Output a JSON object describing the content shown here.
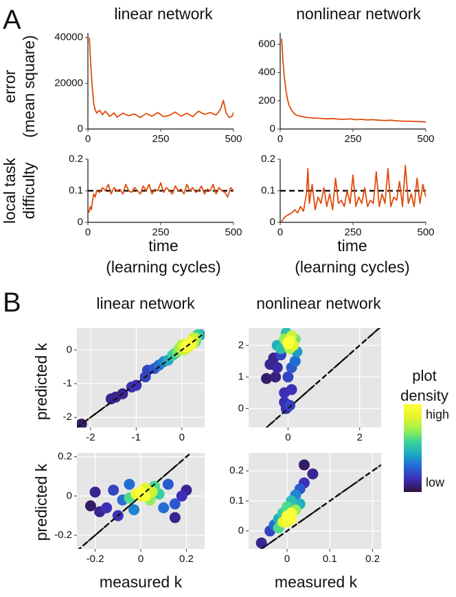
{
  "panel_A": {
    "letter": "A",
    "col_titles": [
      "linear network",
      "nonlinear network"
    ],
    "row_labels": {
      "error": [
        "error",
        "(mean square)"
      ],
      "difficulty": [
        "local task",
        "difficulty"
      ]
    },
    "x_axis_label": [
      "time",
      "(learning cycles)"
    ]
  },
  "panel_B": {
    "letter": "B",
    "col_titles": [
      "linear network",
      "nonlinear network"
    ],
    "y_label": "predicted k",
    "x_label": "measured k",
    "colorbar": {
      "title": [
        "plot",
        "density"
      ],
      "high_label": "high",
      "low_label": "low",
      "colors": [
        "#30123b",
        "#3e2cb3",
        "#2466d6",
        "#1ea8c5",
        "#3bd49b",
        "#9ff04c",
        "#e5f52b",
        "#ffff3a"
      ]
    }
  },
  "chart_data": [
    {
      "id": "A-error-linear",
      "type": "line",
      "title": "linear network",
      "ylabel": "error (mean square)",
      "xlabel": "",
      "xlim": [
        0,
        500
      ],
      "ylim": [
        0,
        42000
      ],
      "xticks": [
        0,
        250,
        500
      ],
      "yticks": [
        0,
        20000,
        40000
      ],
      "series": [
        {
          "name": "error",
          "color": "#e04a0a",
          "x": [
            5,
            10,
            15,
            20,
            25,
            30,
            40,
            50,
            60,
            75,
            90,
            100,
            120,
            140,
            160,
            180,
            200,
            220,
            240,
            260,
            280,
            300,
            320,
            340,
            360,
            380,
            400,
            420,
            440,
            455,
            465,
            475,
            485,
            495,
            500
          ],
          "y": [
            40000,
            28000,
            18000,
            11000,
            8500,
            7000,
            8200,
            6300,
            7800,
            5500,
            7000,
            5200,
            6900,
            5800,
            6600,
            5000,
            6800,
            5600,
            7200,
            5400,
            6000,
            7400,
            5600,
            6900,
            5400,
            7800,
            6400,
            7200,
            6100,
            8500,
            12500,
            7000,
            5000,
            5600,
            7200
          ]
        }
      ]
    },
    {
      "id": "A-error-nonlinear",
      "type": "line",
      "title": "nonlinear network",
      "ylabel": "",
      "xlabel": "",
      "xlim": [
        0,
        500
      ],
      "ylim": [
        0,
        680
      ],
      "xticks": [
        0,
        250,
        500
      ],
      "yticks": [
        0,
        200,
        400,
        600
      ],
      "series": [
        {
          "name": "error",
          "color": "#e04a0a",
          "x": [
            5,
            10,
            15,
            20,
            25,
            30,
            40,
            50,
            60,
            75,
            90,
            100,
            120,
            140,
            160,
            180,
            200,
            220,
            240,
            260,
            280,
            300,
            320,
            340,
            360,
            380,
            400,
            420,
            440,
            460,
            480,
            500
          ],
          "y": [
            640,
            470,
            350,
            270,
            210,
            170,
            130,
            105,
            95,
            88,
            82,
            80,
            77,
            75,
            72,
            74,
            70,
            68,
            72,
            66,
            68,
            64,
            66,
            62,
            60,
            62,
            58,
            56,
            55,
            54,
            52,
            50
          ]
        }
      ]
    },
    {
      "id": "A-difficulty-linear",
      "type": "line",
      "title": "",
      "ylabel": "local task difficulty",
      "xlabel": "time (learning cycles)",
      "xlim": [
        0,
        500
      ],
      "ylim": [
        0,
        0.2
      ],
      "xticks": [
        0,
        250,
        500
      ],
      "yticks": [
        0.0,
        0.1,
        0.2
      ],
      "reference_line": {
        "y": 0.1,
        "style": "dashed"
      },
      "series": [
        {
          "name": "difficulty",
          "color": "#e04a0a",
          "x": [
            3,
            8,
            12,
            16,
            20,
            25,
            30,
            40,
            50,
            60,
            70,
            80,
            90,
            100,
            110,
            120,
            130,
            140,
            150,
            160,
            170,
            180,
            190,
            200,
            210,
            220,
            230,
            240,
            250,
            260,
            270,
            280,
            290,
            300,
            310,
            320,
            330,
            340,
            350,
            360,
            370,
            380,
            390,
            400,
            410,
            420,
            430,
            440,
            450,
            460,
            470,
            480,
            490,
            500
          ],
          "y": [
            0.03,
            0.05,
            0.04,
            0.07,
            0.09,
            0.08,
            0.1,
            0.095,
            0.11,
            0.1,
            0.12,
            0.09,
            0.11,
            0.1,
            0.105,
            0.09,
            0.12,
            0.1,
            0.095,
            0.11,
            0.1,
            0.09,
            0.115,
            0.1,
            0.12,
            0.09,
            0.105,
            0.1,
            0.125,
            0.095,
            0.11,
            0.1,
            0.09,
            0.115,
            0.1,
            0.105,
            0.09,
            0.12,
            0.1,
            0.11,
            0.095,
            0.1,
            0.115,
            0.09,
            0.105,
            0.1,
            0.12,
            0.09,
            0.11,
            0.1,
            0.095,
            0.08,
            0.11,
            0.1
          ]
        }
      ]
    },
    {
      "id": "A-difficulty-nonlinear",
      "type": "line",
      "title": "",
      "ylabel": "",
      "xlabel": "time (learning cycles)",
      "xlim": [
        0,
        500
      ],
      "ylim": [
        0,
        0.2
      ],
      "xticks": [
        0,
        250,
        500
      ],
      "yticks": [
        0.0,
        0.1,
        0.2
      ],
      "reference_line": {
        "y": 0.1,
        "style": "dashed"
      },
      "series": [
        {
          "name": "difficulty",
          "color": "#e04a0a",
          "x": [
            3,
            10,
            20,
            30,
            40,
            50,
            60,
            70,
            80,
            90,
            95,
            100,
            110,
            120,
            130,
            140,
            150,
            160,
            170,
            180,
            190,
            200,
            210,
            220,
            230,
            240,
            250,
            260,
            270,
            280,
            290,
            300,
            310,
            320,
            330,
            340,
            350,
            360,
            370,
            380,
            390,
            400,
            410,
            420,
            430,
            440,
            450,
            460,
            470,
            480,
            490,
            500
          ],
          "y": [
            0.0,
            0.01,
            0.02,
            0.025,
            0.03,
            0.04,
            0.03,
            0.05,
            0.035,
            0.09,
            0.17,
            0.06,
            0.12,
            0.04,
            0.08,
            0.06,
            0.11,
            0.05,
            0.09,
            0.04,
            0.14,
            0.06,
            0.07,
            0.05,
            0.1,
            0.06,
            0.15,
            0.05,
            0.08,
            0.06,
            0.11,
            0.05,
            0.07,
            0.06,
            0.16,
            0.05,
            0.09,
            0.06,
            0.17,
            0.05,
            0.08,
            0.07,
            0.13,
            0.05,
            0.18,
            0.06,
            0.09,
            0.05,
            0.14,
            0.06,
            0.12,
            0.08
          ]
        }
      ]
    },
    {
      "id": "B-linear-top",
      "type": "scatter",
      "title": "linear network",
      "xlabel": "",
      "ylabel": "predicted k",
      "xlim": [
        -2.3,
        0.5
      ],
      "ylim": [
        -2.3,
        0.65
      ],
      "xticks": [
        -2,
        -1,
        0
      ],
      "yticks": [
        -2,
        -1,
        0
      ],
      "reference_line": {
        "slope": 1,
        "intercept": 0,
        "style": "dashed"
      },
      "points": [
        [
          -2.2,
          -2.2
        ],
        [
          -1.55,
          -1.45
        ],
        [
          -1.45,
          -1.4
        ],
        [
          -1.3,
          -1.3
        ],
        [
          -1.1,
          -1.1
        ],
        [
          -1.0,
          -1.05
        ],
        [
          -0.8,
          -0.8
        ],
        [
          -0.75,
          -0.6
        ],
        [
          -0.6,
          -0.55
        ],
        [
          -0.5,
          -0.45
        ],
        [
          -0.4,
          -0.35
        ],
        [
          -0.3,
          -0.3
        ],
        [
          -0.2,
          -0.15
        ],
        [
          -0.1,
          -0.05
        ],
        [
          0.0,
          0.0
        ],
        [
          0.05,
          0.1
        ],
        [
          0.1,
          0.15
        ],
        [
          0.15,
          0.2
        ],
        [
          0.2,
          0.25
        ],
        [
          0.25,
          0.35
        ],
        [
          0.3,
          0.35
        ],
        [
          0.35,
          0.45
        ],
        [
          0.4,
          0.45
        ],
        [
          -0.05,
          0.05
        ],
        [
          0.1,
          0.05
        ],
        [
          0.2,
          0.15
        ],
        [
          0.3,
          0.25
        ],
        [
          0.0,
          0.15
        ],
        [
          -0.15,
          -0.1
        ],
        [
          0.15,
          0.1
        ],
        [
          0.05,
          0.0
        ],
        [
          0.25,
          0.2
        ],
        [
          0.1,
          0.1
        ],
        [
          0.2,
          0.2
        ]
      ],
      "density": [
        0.05,
        0.1,
        0.1,
        0.1,
        0.15,
        0.15,
        0.2,
        0.2,
        0.25,
        0.3,
        0.35,
        0.45,
        0.55,
        0.65,
        0.75,
        0.85,
        0.9,
        0.95,
        0.9,
        0.8,
        0.7,
        0.55,
        0.4,
        0.7,
        0.8,
        0.85,
        0.6,
        0.75,
        0.5,
        0.9,
        0.8,
        0.75,
        1.0,
        0.95
      ]
    },
    {
      "id": "B-nonlinear-top",
      "type": "scatter",
      "title": "nonlinear network",
      "xlabel": "",
      "ylabel": "",
      "xlim": [
        -1.1,
        2.6
      ],
      "ylim": [
        -0.6,
        2.55
      ],
      "xticks": [
        0,
        2
      ],
      "yticks": [
        0,
        1,
        2
      ],
      "reference_line": {
        "slope": 1,
        "intercept": 0,
        "style": "dashed"
      },
      "points": [
        [
          -0.6,
          0.95
        ],
        [
          -0.5,
          1.4
        ],
        [
          -0.4,
          1.6
        ],
        [
          -0.3,
          1.3
        ],
        [
          -0.35,
          1.0
        ],
        [
          -0.2,
          1.7
        ],
        [
          -0.1,
          0.5
        ],
        [
          -0.1,
          0.2
        ],
        [
          -0.05,
          0.0
        ],
        [
          0.05,
          0.1
        ],
        [
          0.1,
          0.6
        ],
        [
          0.0,
          1.0
        ],
        [
          0.1,
          1.3
        ],
        [
          0.2,
          1.5
        ],
        [
          -0.2,
          1.9
        ],
        [
          -0.1,
          2.2
        ],
        [
          0.0,
          2.1
        ],
        [
          0.1,
          2.3
        ],
        [
          0.15,
          2.0
        ],
        [
          0.05,
          1.9
        ],
        [
          0.2,
          2.2
        ],
        [
          -0.05,
          2.4
        ],
        [
          0.0,
          2.05
        ],
        [
          0.05,
          2.15
        ],
        [
          -0.3,
          2.0
        ],
        [
          0.25,
          1.8
        ]
      ],
      "density": [
        0.05,
        0.1,
        0.1,
        0.12,
        0.08,
        0.2,
        0.15,
        0.15,
        0.15,
        0.2,
        0.15,
        0.2,
        0.25,
        0.3,
        0.5,
        0.7,
        0.95,
        0.8,
        0.85,
        0.75,
        0.65,
        0.5,
        1.0,
        0.95,
        0.45,
        0.4
      ]
    },
    {
      "id": "B-linear-bottom",
      "type": "scatter",
      "title": "",
      "xlabel": "measured k",
      "ylabel": "predicted k",
      "xlim": [
        -0.28,
        0.28
      ],
      "ylim": [
        -0.27,
        0.22
      ],
      "xticks": [
        -0.2,
        0.0,
        0.2
      ],
      "yticks": [
        -0.2,
        0.0,
        0.2
      ],
      "reference_line": {
        "slope": 1,
        "intercept": 0,
        "style": "dashed"
      },
      "points": [
        [
          -0.22,
          -0.05
        ],
        [
          -0.2,
          0.02
        ],
        [
          -0.18,
          -0.08
        ],
        [
          -0.15,
          -0.06
        ],
        [
          -0.12,
          0.03
        ],
        [
          -0.1,
          -0.1
        ],
        [
          -0.08,
          -0.02
        ],
        [
          -0.05,
          0.06
        ],
        [
          -0.03,
          -0.07
        ],
        [
          0.0,
          0.0
        ],
        [
          0.02,
          0.04
        ],
        [
          0.04,
          -0.02
        ],
        [
          0.06,
          0.05
        ],
        [
          0.08,
          0.01
        ],
        [
          0.1,
          -0.06
        ],
        [
          0.12,
          0.06
        ],
        [
          0.15,
          -0.04
        ],
        [
          0.18,
          0.0
        ],
        [
          0.2,
          0.03
        ],
        [
          0.15,
          -0.11
        ],
        [
          0.0,
          0.02
        ],
        [
          0.02,
          0.0
        ],
        [
          -0.02,
          0.01
        ],
        [
          0.05,
          0.02
        ],
        [
          -0.05,
          -0.01
        ]
      ],
      "density": [
        0.05,
        0.1,
        0.1,
        0.15,
        0.2,
        0.15,
        0.3,
        0.3,
        0.35,
        0.9,
        0.85,
        0.7,
        0.6,
        0.55,
        0.3,
        0.25,
        0.25,
        0.15,
        0.1,
        0.1,
        1.0,
        0.95,
        0.9,
        0.8,
        0.6
      ]
    },
    {
      "id": "B-nonlinear-bottom",
      "type": "scatter",
      "title": "",
      "xlabel": "measured k",
      "ylabel": "",
      "xlim": [
        -0.09,
        0.22
      ],
      "ylim": [
        -0.06,
        0.26
      ],
      "xticks": [
        0.0,
        0.1,
        0.2
      ],
      "yticks": [
        0.0,
        0.1,
        0.2
      ],
      "reference_line": {
        "slope": 1,
        "intercept": 0,
        "style": "dashed"
      },
      "points": [
        [
          -0.06,
          -0.04
        ],
        [
          -0.04,
          0.0
        ],
        [
          -0.03,
          0.02
        ],
        [
          -0.02,
          0.04
        ],
        [
          -0.01,
          0.06
        ],
        [
          0.0,
          0.08
        ],
        [
          0.01,
          0.1
        ],
        [
          0.02,
          0.12
        ],
        [
          0.03,
          0.14
        ],
        [
          0.04,
          0.16
        ],
        [
          0.06,
          0.19
        ],
        [
          0.04,
          0.22
        ],
        [
          0.0,
          0.05
        ],
        [
          0.01,
          0.04
        ],
        [
          -0.01,
          0.03
        ],
        [
          0.02,
          0.07
        ],
        [
          0.0,
          0.03
        ],
        [
          0.01,
          0.06
        ],
        [
          -0.02,
          0.01
        ],
        [
          0.03,
          0.09
        ]
      ],
      "density": [
        0.1,
        0.2,
        0.3,
        0.45,
        0.55,
        0.6,
        0.5,
        0.35,
        0.25,
        0.15,
        0.1,
        0.05,
        1.0,
        0.95,
        0.85,
        0.7,
        0.9,
        0.95,
        0.6,
        0.45
      ]
    }
  ]
}
